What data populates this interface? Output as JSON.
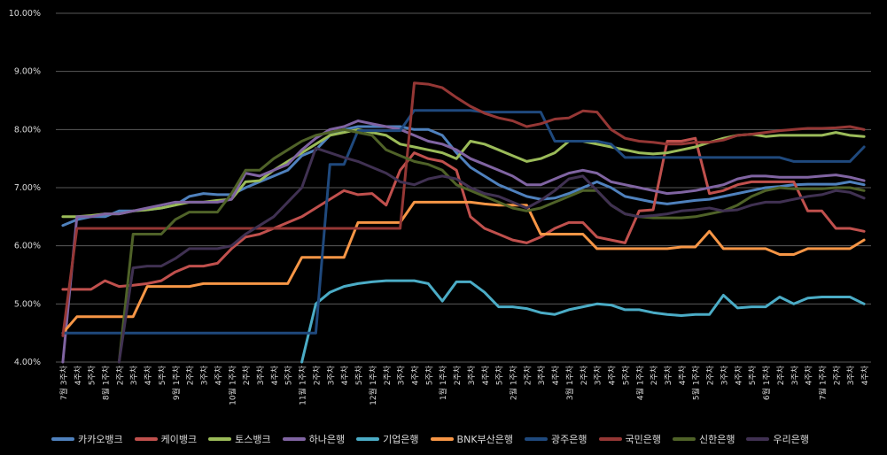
{
  "chart_data": {
    "type": "line",
    "title": "",
    "ylim": [
      4.0,
      10.0
    ],
    "y_ticks": [
      "4.00%",
      "5.00%",
      "6.00%",
      "7.00%",
      "8.00%",
      "9.00%",
      "10.00%"
    ],
    "x_tick_labels": [
      "7월 3주차",
      "4주차",
      "5주차",
      "8월 1주차",
      "2주차",
      "3주차",
      "4주차",
      "5주차",
      "9월 1주차",
      "2주차",
      "3주차",
      "4주차",
      "10월 1주차",
      "2주차",
      "3주차",
      "4주차",
      "5주차",
      "11월 1주차",
      "2주차",
      "3주차",
      "4주차",
      "5주차",
      "12월 1주차",
      "2주차",
      "3주차",
      "4주차",
      "5주차",
      "1월 1주차",
      "2주차",
      "3주차",
      "4주차",
      "5주차",
      "2월 1주차",
      "2주차",
      "3주차",
      "4주차",
      "3월 1주차",
      "2주차",
      "3주차",
      "4주차",
      "5주차",
      "4월 1주차",
      "2주차",
      "3주차",
      "4주차",
      "5월 1주차",
      "2주차",
      "3주차",
      "4주차",
      "5주차",
      "6월 1주차",
      "2주차",
      "3주차",
      "4주차",
      "7월 1주차",
      "2주차",
      "3주차",
      "4주차"
    ],
    "series": [
      {
        "name": "카카오뱅크",
        "color": "#4f81bd",
        "values": [
          6.35,
          6.45,
          6.5,
          6.5,
          6.6,
          6.6,
          6.62,
          6.65,
          6.7,
          6.85,
          6.9,
          6.88,
          6.88,
          7.0,
          7.1,
          7.2,
          7.3,
          7.55,
          7.65,
          7.9,
          8.0,
          8.05,
          8.05,
          8.05,
          8.05,
          8.0,
          8.0,
          7.9,
          7.6,
          7.35,
          7.2,
          7.05,
          6.95,
          6.85,
          6.8,
          6.82,
          6.9,
          7.0,
          7.1,
          7.0,
          6.85,
          6.8,
          6.75,
          6.72,
          6.75,
          6.78,
          6.8,
          6.85,
          6.9,
          6.95,
          7.0,
          7.02,
          7.05,
          7.06,
          7.06,
          7.06,
          7.1,
          7.05
        ]
      },
      {
        "name": "케이뱅크",
        "color": "#c0504d",
        "values": [
          5.25,
          5.25,
          5.25,
          5.4,
          5.3,
          5.32,
          5.35,
          5.4,
          5.55,
          5.65,
          5.65,
          5.7,
          5.95,
          6.15,
          6.2,
          6.3,
          6.4,
          6.5,
          6.65,
          6.8,
          6.95,
          6.88,
          6.9,
          6.7,
          7.3,
          7.6,
          7.5,
          7.45,
          7.3,
          6.5,
          6.3,
          6.2,
          6.1,
          6.05,
          6.15,
          6.3,
          6.4,
          6.4,
          6.15,
          6.1,
          6.05,
          6.6,
          6.62,
          7.8,
          7.8,
          7.85,
          6.9,
          6.95,
          7.05,
          7.1,
          7.1,
          7.1,
          7.1,
          6.6,
          6.6,
          6.3,
          6.3,
          6.25
        ]
      },
      {
        "name": "토스뱅크",
        "color": "#9bbb59",
        "values": [
          6.5,
          6.5,
          6.52,
          6.55,
          6.55,
          6.6,
          6.62,
          6.65,
          6.7,
          6.75,
          6.75,
          6.78,
          6.8,
          7.1,
          7.12,
          7.3,
          7.45,
          7.6,
          7.75,
          7.9,
          7.95,
          8.0,
          7.95,
          7.9,
          7.75,
          7.7,
          7.65,
          7.6,
          7.5,
          7.8,
          7.75,
          7.65,
          7.55,
          7.45,
          7.5,
          7.6,
          7.8,
          7.8,
          7.75,
          7.7,
          7.65,
          7.6,
          7.58,
          7.6,
          7.65,
          7.7,
          7.78,
          7.85,
          7.9,
          7.92,
          7.88,
          7.9,
          7.9,
          7.9,
          7.9,
          7.95,
          7.9,
          7.88
        ]
      },
      {
        "name": "하나은행",
        "color": "#8064a2",
        "values": [
          4.0,
          6.5,
          6.5,
          6.55,
          6.55,
          6.6,
          6.65,
          6.7,
          6.75,
          6.75,
          6.75,
          6.75,
          6.8,
          7.25,
          7.2,
          7.3,
          7.4,
          7.65,
          7.85,
          8.0,
          8.05,
          8.15,
          8.1,
          8.05,
          8.0,
          7.9,
          7.8,
          7.75,
          7.65,
          7.5,
          7.4,
          7.3,
          7.2,
          7.05,
          7.05,
          7.15,
          7.25,
          7.3,
          7.25,
          7.1,
          7.05,
          7.0,
          6.95,
          6.9,
          6.92,
          6.95,
          7.0,
          7.05,
          7.15,
          7.2,
          7.2,
          7.18,
          7.18,
          7.18,
          7.2,
          7.22,
          7.18,
          7.12
        ]
      },
      {
        "name": "기업은행",
        "color": "#4bacc6",
        "values": [
          null,
          null,
          null,
          null,
          null,
          null,
          null,
          null,
          null,
          null,
          null,
          null,
          null,
          null,
          null,
          null,
          null,
          4.0,
          5.0,
          5.2,
          5.3,
          5.35,
          5.38,
          5.4,
          5.4,
          5.4,
          5.35,
          5.05,
          5.38,
          5.38,
          5.2,
          4.95,
          4.95,
          4.92,
          4.85,
          4.82,
          4.9,
          4.95,
          5.0,
          4.98,
          4.9,
          4.9,
          4.85,
          4.82,
          4.8,
          4.82,
          4.82,
          5.15,
          4.93,
          4.95,
          4.95,
          5.12,
          5.0,
          5.1,
          5.12,
          5.12,
          5.12,
          5.0
        ]
      },
      {
        "name": "BNK부산은행",
        "color": "#f79646",
        "values": [
          4.5,
          4.78,
          4.78,
          4.78,
          4.78,
          4.78,
          5.3,
          5.3,
          5.3,
          5.3,
          5.35,
          5.35,
          5.35,
          5.35,
          5.35,
          5.35,
          5.35,
          5.8,
          5.8,
          5.8,
          5.8,
          6.4,
          6.4,
          6.4,
          6.4,
          6.75,
          6.75,
          6.75,
          6.75,
          6.75,
          6.72,
          6.7,
          6.7,
          6.7,
          6.2,
          6.2,
          6.2,
          6.2,
          5.95,
          5.95,
          5.95,
          5.95,
          5.95,
          5.95,
          5.98,
          5.98,
          6.25,
          5.95,
          5.95,
          5.95,
          5.95,
          5.85,
          5.85,
          5.95,
          5.95,
          5.95,
          5.95,
          6.1
        ]
      },
      {
        "name": "광주은행",
        "color": "#1f497d",
        "values": [
          4.5,
          4.5,
          4.5,
          4.5,
          4.5,
          4.5,
          4.5,
          4.5,
          4.5,
          4.5,
          4.5,
          4.5,
          4.5,
          4.5,
          4.5,
          4.5,
          4.5,
          4.5,
          4.5,
          7.4,
          7.4,
          7.98,
          7.98,
          7.98,
          7.98,
          8.33,
          8.33,
          8.33,
          8.33,
          8.33,
          8.3,
          8.3,
          8.3,
          8.3,
          8.3,
          7.8,
          7.8,
          7.8,
          7.8,
          7.75,
          7.52,
          7.52,
          7.52,
          7.52,
          7.52,
          7.52,
          7.52,
          7.52,
          7.52,
          7.52,
          7.52,
          7.52,
          7.45,
          7.45,
          7.45,
          7.45,
          7.45,
          7.7
        ]
      },
      {
        "name": "국민은행",
        "color": "#953735",
        "values": [
          4.45,
          6.3,
          6.3,
          6.3,
          6.3,
          6.3,
          6.3,
          6.3,
          6.3,
          6.3,
          6.3,
          6.3,
          6.3,
          6.3,
          6.3,
          6.3,
          6.3,
          6.3,
          6.3,
          6.3,
          6.3,
          6.3,
          6.3,
          6.3,
          6.3,
          8.8,
          8.78,
          8.72,
          8.55,
          8.4,
          8.28,
          8.2,
          8.15,
          8.05,
          8.1,
          8.18,
          8.2,
          8.32,
          8.3,
          8.0,
          7.85,
          7.8,
          7.78,
          7.75,
          7.75,
          7.78,
          7.78,
          7.82,
          7.9,
          7.92,
          7.95,
          7.98,
          8.0,
          8.02,
          8.02,
          8.03,
          8.05,
          8.0
        ]
      },
      {
        "name": "신한은행",
        "color": "#4f6228",
        "values": [
          null,
          null,
          null,
          null,
          4.0,
          6.2,
          6.2,
          6.2,
          6.45,
          6.58,
          6.58,
          6.58,
          6.9,
          7.3,
          7.3,
          7.5,
          7.65,
          7.8,
          7.9,
          7.95,
          8.0,
          7.95,
          7.9,
          7.65,
          7.55,
          7.45,
          7.4,
          7.3,
          7.05,
          6.95,
          6.85,
          6.75,
          6.65,
          6.6,
          6.65,
          6.75,
          6.85,
          6.95,
          6.95,
          6.7,
          6.55,
          6.5,
          6.48,
          6.48,
          6.48,
          6.5,
          6.55,
          6.6,
          6.7,
          6.85,
          6.95,
          7.0,
          6.98,
          6.98,
          6.98,
          7.0,
          7.0,
          6.95
        ]
      },
      {
        "name": "우리은행",
        "color": "#403152",
        "values": [
          null,
          null,
          null,
          null,
          4.0,
          5.62,
          5.65,
          5.65,
          5.78,
          5.95,
          5.95,
          5.95,
          6.0,
          6.2,
          6.35,
          6.5,
          6.75,
          7.0,
          7.68,
          7.6,
          7.52,
          7.45,
          7.35,
          7.25,
          7.1,
          7.05,
          7.15,
          7.2,
          7.15,
          7.0,
          6.9,
          6.85,
          6.75,
          6.65,
          6.78,
          6.95,
          7.15,
          7.2,
          6.95,
          6.7,
          6.55,
          6.5,
          6.52,
          6.55,
          6.6,
          6.62,
          6.65,
          6.6,
          6.62,
          6.7,
          6.75,
          6.75,
          6.8,
          6.85,
          6.88,
          6.95,
          6.92,
          6.82
        ]
      }
    ]
  }
}
